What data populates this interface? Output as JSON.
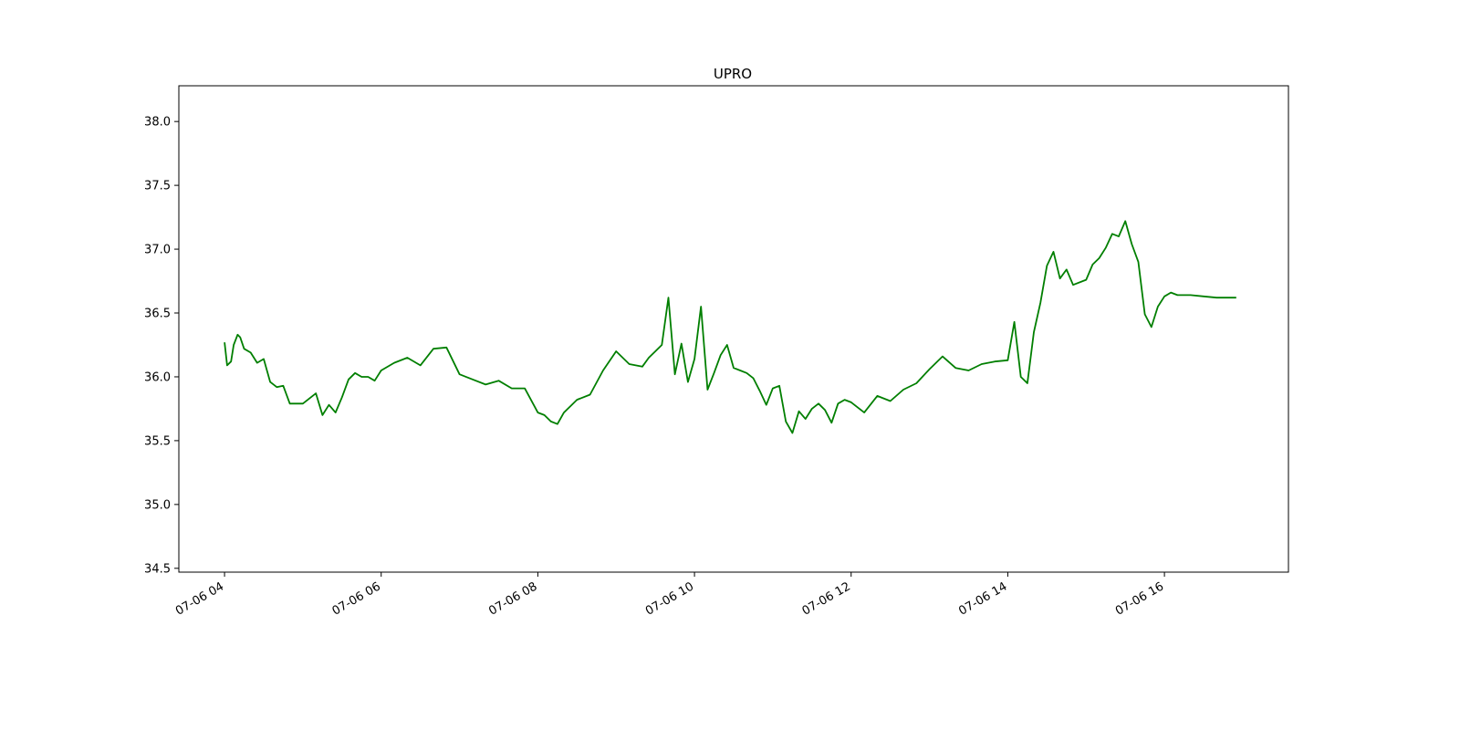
{
  "chart_data": {
    "type": "line",
    "title": "UPRO",
    "xlabel": "",
    "ylabel": "",
    "grid": false,
    "xlim": [
      "07-06 03:25",
      "07-06 17:35"
    ],
    "ylim": [
      34.47,
      38.28
    ],
    "x_ticks": [
      "07-06 04",
      "07-06 06",
      "07-06 08",
      "07-06 10",
      "07-06 12",
      "07-06 14",
      "07-06 16"
    ],
    "y_ticks": [
      "34.5",
      "35.0",
      "35.5",
      "36.0",
      "36.5",
      "37.0",
      "37.5",
      "38.0"
    ],
    "series": [
      {
        "color": "#007f00",
        "x": [
          "07-06 04:00",
          "07-06 04:02",
          "07-06 04:05",
          "07-06 04:07",
          "07-06 04:10",
          "07-06 04:12",
          "07-06 04:15",
          "07-06 04:20",
          "07-06 04:25",
          "07-06 04:30",
          "07-06 04:35",
          "07-06 04:40",
          "07-06 04:45",
          "07-06 04:50",
          "07-06 05:00",
          "07-06 05:10",
          "07-06 05:15",
          "07-06 05:20",
          "07-06 05:25",
          "07-06 05:30",
          "07-06 05:35",
          "07-06 05:40",
          "07-06 05:45",
          "07-06 05:50",
          "07-06 05:55",
          "07-06 06:00",
          "07-06 06:10",
          "07-06 06:20",
          "07-06 06:30",
          "07-06 06:40",
          "07-06 06:50",
          "07-06 07:00",
          "07-06 07:10",
          "07-06 07:20",
          "07-06 07:30",
          "07-06 07:40",
          "07-06 07:50",
          "07-06 08:00",
          "07-06 08:05",
          "07-06 08:10",
          "07-06 08:15",
          "07-06 08:20",
          "07-06 08:30",
          "07-06 08:40",
          "07-06 08:50",
          "07-06 09:00",
          "07-06 09:10",
          "07-06 09:20",
          "07-06 09:25",
          "07-06 09:30",
          "07-06 09:35",
          "07-06 09:40",
          "07-06 09:45",
          "07-06 09:50",
          "07-06 09:55",
          "07-06 10:00",
          "07-06 10:05",
          "07-06 10:10",
          "07-06 10:15",
          "07-06 10:20",
          "07-06 10:25",
          "07-06 10:30",
          "07-06 10:35",
          "07-06 10:40",
          "07-06 10:45",
          "07-06 10:50",
          "07-06 10:55",
          "07-06 11:00",
          "07-06 11:05",
          "07-06 11:10",
          "07-06 11:15",
          "07-06 11:20",
          "07-06 11:25",
          "07-06 11:30",
          "07-06 11:35",
          "07-06 11:40",
          "07-06 11:45",
          "07-06 11:50",
          "07-06 11:55",
          "07-06 12:00",
          "07-06 12:10",
          "07-06 12:20",
          "07-06 12:30",
          "07-06 12:40",
          "07-06 12:50",
          "07-06 13:00",
          "07-06 13:10",
          "07-06 13:20",
          "07-06 13:30",
          "07-06 13:40",
          "07-06 13:50",
          "07-06 14:00",
          "07-06 14:05",
          "07-06 14:10",
          "07-06 14:15",
          "07-06 14:20",
          "07-06 14:25",
          "07-06 14:30",
          "07-06 14:35",
          "07-06 14:40",
          "07-06 14:45",
          "07-06 14:50",
          "07-06 15:00",
          "07-06 15:05",
          "07-06 15:10",
          "07-06 15:15",
          "07-06 15:20",
          "07-06 15:25",
          "07-06 15:30",
          "07-06 15:35",
          "07-06 15:40",
          "07-06 15:45",
          "07-06 15:50",
          "07-06 15:55",
          "07-06 16:00",
          "07-06 16:05",
          "07-06 16:10",
          "07-06 16:20",
          "07-06 16:30",
          "07-06 16:40",
          "07-06 16:50",
          "07-06 16:55"
        ],
        "y": [
          36.27,
          36.09,
          36.12,
          36.25,
          36.33,
          36.31,
          36.22,
          36.19,
          36.11,
          36.14,
          35.96,
          35.92,
          35.93,
          35.79,
          35.79,
          35.87,
          35.7,
          35.78,
          35.72,
          35.84,
          35.98,
          36.03,
          36.0,
          36.0,
          35.97,
          36.05,
          36.11,
          36.15,
          36.09,
          36.22,
          36.23,
          36.02,
          35.98,
          35.94,
          35.97,
          35.91,
          35.91,
          35.72,
          35.7,
          35.65,
          35.63,
          35.72,
          35.82,
          35.86,
          36.05,
          36.2,
          36.1,
          36.08,
          36.15,
          36.2,
          36.25,
          36.62,
          36.02,
          36.26,
          35.96,
          36.14,
          36.55,
          35.9,
          36.03,
          36.17,
          36.25,
          36.07,
          36.05,
          36.03,
          35.99,
          35.89,
          35.78,
          35.91,
          35.93,
          35.65,
          35.56,
          35.73,
          35.67,
          35.75,
          35.79,
          35.74,
          35.64,
          35.79,
          35.82,
          35.8,
          35.72,
          35.85,
          35.81,
          35.9,
          35.95,
          36.06,
          36.16,
          36.07,
          36.05,
          36.1,
          36.12,
          36.13,
          36.43,
          36.0,
          35.95,
          36.35,
          36.58,
          36.87,
          36.98,
          36.77,
          36.84,
          36.72,
          36.76,
          36.88,
          36.93,
          37.01,
          37.12,
          37.1,
          37.22,
          37.04,
          36.9,
          36.49,
          36.39,
          36.55,
          36.63,
          36.66,
          36.64,
          36.64,
          36.63,
          36.62,
          36.62,
          36.62
        ]
      }
    ]
  }
}
